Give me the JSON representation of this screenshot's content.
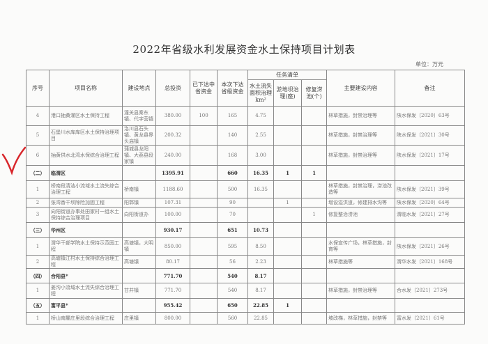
{
  "title": "2022年省级水利发展资金水土保持项目计划表",
  "unit": "单位：万元",
  "headers": {
    "seq": "序号",
    "name": "项目名称",
    "location": "建设地点",
    "total": "总投资",
    "issued": "已下达中省资金",
    "current": "本次下达省级资金",
    "tasks": "任务清单",
    "area": "水土流失面积治理km²",
    "dam": "淤地坝治理(座)",
    "pond": "修复涝池(个)",
    "content": "主要建设内容",
    "remark": "备注"
  },
  "rows": [
    {
      "type": "item",
      "seq": "4",
      "name": "港口抽黄灌区水土保持工程",
      "location": "潼关县秦东镇、代字营镇",
      "total": "380.00",
      "issued": "100",
      "current": "165",
      "area": "4.75",
      "dam": "",
      "pond": "",
      "content": "林草措施，封禁治理等",
      "remark": "陕水保发〔2020〕63号"
    },
    {
      "type": "item",
      "seq": "5",
      "name": "石堡川水库库区水土保持治理项目",
      "location": "洛川县石头镇、黄龙县界头庙镇",
      "total": "200.32",
      "issued": "",
      "current": "140",
      "area": "2.55",
      "dam": "",
      "pond": "",
      "content": "林草措施，封禁治理等",
      "remark": "陕水保发〔2021〕30号"
    },
    {
      "type": "item",
      "seq": "6",
      "name": "抽黄供水北湾水保综合治理工程",
      "location": "蒲城县龙阳镇、大荔县段家镇",
      "total": "240.00",
      "issued": "",
      "current": "168",
      "area": "3.00",
      "dam": "",
      "pond": "",
      "content": "林草措施，封禁治理等",
      "remark": "陕水保发〔2021〕17号"
    },
    {
      "type": "sub",
      "seq": "（二）",
      "name": "临渭区",
      "location": "",
      "total": "1395.91",
      "issued": "",
      "current": "660",
      "area": "16.35",
      "dam": "1",
      "pond": "1",
      "content": "",
      "remark": ""
    },
    {
      "type": "item",
      "seq": "1",
      "name": "桥南段清洁小流域水土流失综合治理工程",
      "location": "桥南镇",
      "total": "1188.60",
      "issued": "",
      "current": "500",
      "area": "16.35",
      "dam": "",
      "pond": "",
      "content": "林草措施，封禁治理，涝池改造等",
      "remark": "陕水保发〔2021〕39号"
    },
    {
      "type": "item",
      "seq": "2",
      "name": "张湾香干坝除险加固工程",
      "location": "阳郭镇",
      "total": "107.31",
      "issued": "",
      "current": "90",
      "area": "",
      "dam": "1",
      "pond": "",
      "content": "增设溢洪道，修建排水沟等",
      "remark": "陕水保发〔2020〕64号"
    },
    {
      "type": "item",
      "seq": "3",
      "name": "向阳街道办事处田家村一组水土保持综合治理项目",
      "location": "向阳街道办",
      "total": "100.00",
      "issued": "",
      "current": "70",
      "area": "",
      "dam": "",
      "pond": "1",
      "content": "修复整治涝池",
      "remark": "渭临水发〔2021〕27号"
    },
    {
      "type": "sub",
      "seq": "（三）",
      "name": "华州区",
      "location": "",
      "total": "930.17",
      "issued": "",
      "current": "651",
      "area": "10.73",
      "dam": "",
      "pond": "",
      "content": "",
      "remark": ""
    },
    {
      "type": "item",
      "seq": "1",
      "name": "渭华干部学院水土保持示范园工程",
      "location": "高塘镇，大明镇",
      "total": "850.00",
      "issued": "",
      "current": "595",
      "area": "8.50",
      "dam": "",
      "pond": "",
      "content": "水保宣传广场，林草措施，封育等",
      "remark": "陕水保发〔2021〕26号"
    },
    {
      "type": "item",
      "seq": "2",
      "name": "高塘镇江村水土保持综合治理工程",
      "location": "高塘镇",
      "total": "80.17",
      "issued": "",
      "current": "56",
      "area": "2.23",
      "dam": "",
      "pond": "",
      "content": "林草措施等",
      "remark": "渭华水发〔2021〕168号"
    },
    {
      "type": "sub",
      "seq": "（四）",
      "name": "合阳县*",
      "location": "",
      "total": "771.70",
      "issued": "",
      "current": "540",
      "area": "8.17",
      "dam": "",
      "pond": "",
      "content": "",
      "remark": ""
    },
    {
      "type": "item",
      "seq": "1",
      "name": "姜沟小流域水土流失综合治理工程",
      "location": "甘井镇",
      "total": "771.70",
      "issued": "",
      "current": "540",
      "area": "8.17",
      "dam": "",
      "pond": "",
      "content": "林草措施，封禁治理等",
      "remark": "合水发〔2021〕273号"
    },
    {
      "type": "sub",
      "seq": "（五）",
      "name": "富平县*",
      "location": "",
      "total": "955.42",
      "issued": "",
      "current": "650",
      "area": "22.85",
      "dam": "1",
      "pond": "",
      "content": "",
      "remark": ""
    },
    {
      "type": "item",
      "seq": "1",
      "name": "桥山南麓庄里段综合治理工程",
      "location": "庄里镇",
      "total": "800.00",
      "issued": "",
      "current": "560",
      "area": "22.85",
      "dam": "",
      "pond": "",
      "content": "坡改梯，林草措施，封禁等",
      "remark": "富水发〔2021〕61号"
    }
  ],
  "annotation": {
    "mark": "red-checkmark",
    "color": "#d8262b"
  }
}
